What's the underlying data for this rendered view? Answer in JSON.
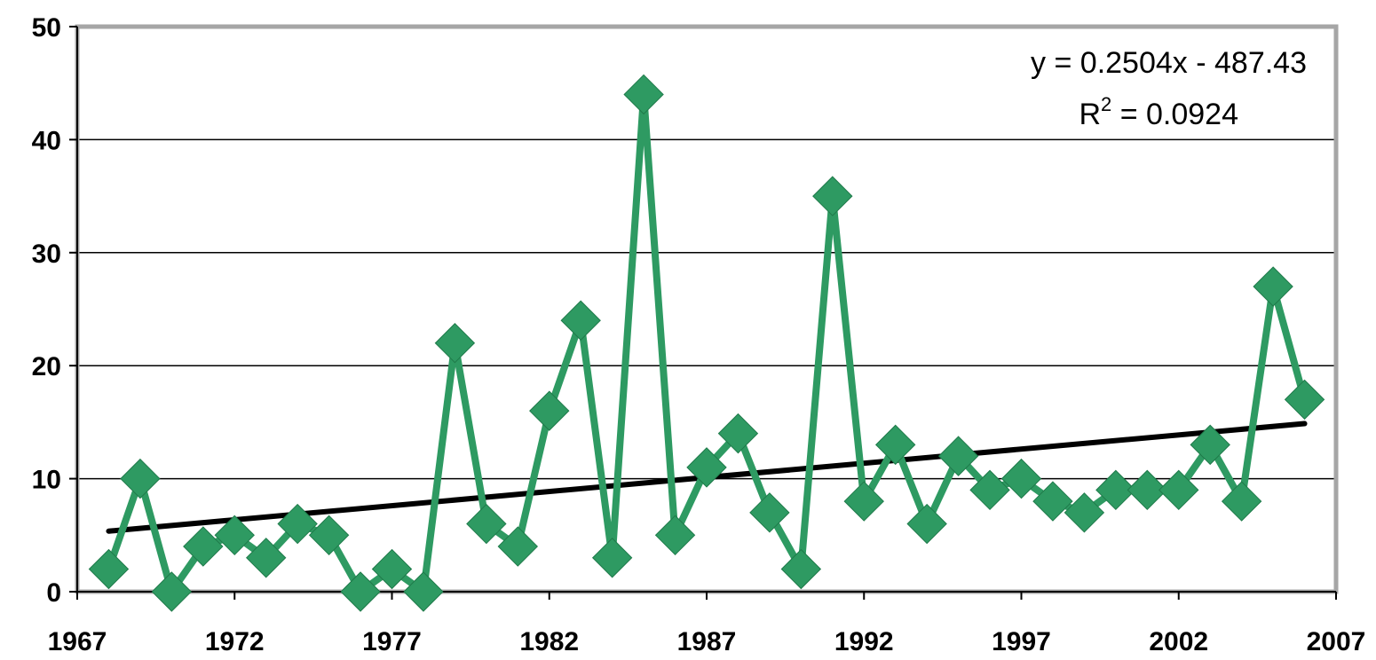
{
  "chart_data": {
    "type": "line",
    "title": "",
    "xlabel": "",
    "ylabel": "",
    "xlim": [
      1967,
      2007
    ],
    "ylim": [
      0,
      50
    ],
    "x_ticks": [
      "1967",
      "1972",
      "1977",
      "1982",
      "1987",
      "1992",
      "1997",
      "2002",
      "2007"
    ],
    "y_ticks": [
      "0",
      "10",
      "20",
      "30",
      "40",
      "50"
    ],
    "grid": "horizontal",
    "series": [
      {
        "color": "#2e9a62",
        "marker": "diamond",
        "points": [
          {
            "x": 1968,
            "y": 2
          },
          {
            "x": 1969,
            "y": 10
          },
          {
            "x": 1970,
            "y": 0
          },
          {
            "x": 1971,
            "y": 4
          },
          {
            "x": 1972,
            "y": 5
          },
          {
            "x": 1973,
            "y": 3
          },
          {
            "x": 1974,
            "y": 6
          },
          {
            "x": 1975,
            "y": 5
          },
          {
            "x": 1976,
            "y": 0
          },
          {
            "x": 1977,
            "y": 2
          },
          {
            "x": 1978,
            "y": 0
          },
          {
            "x": 1979,
            "y": 22
          },
          {
            "x": 1980,
            "y": 6
          },
          {
            "x": 1981,
            "y": 4
          },
          {
            "x": 1982,
            "y": 16
          },
          {
            "x": 1983,
            "y": 24
          },
          {
            "x": 1984,
            "y": 3
          },
          {
            "x": 1985,
            "y": 44
          },
          {
            "x": 1986,
            "y": 5
          },
          {
            "x": 1987,
            "y": 11
          },
          {
            "x": 1988,
            "y": 14
          },
          {
            "x": 1989,
            "y": 7
          },
          {
            "x": 1990,
            "y": 2
          },
          {
            "x": 1991,
            "y": 35
          },
          {
            "x": 1992,
            "y": 8
          },
          {
            "x": 1993,
            "y": 13
          },
          {
            "x": 1994,
            "y": 6
          },
          {
            "x": 1995,
            "y": 12
          },
          {
            "x": 1996,
            "y": 9
          },
          {
            "x": 1997,
            "y": 10
          },
          {
            "x": 1998,
            "y": 8
          },
          {
            "x": 1999,
            "y": 7
          },
          {
            "x": 2000,
            "y": 9
          },
          {
            "x": 2001,
            "y": 9
          },
          {
            "x": 2002,
            "y": 9
          },
          {
            "x": 2003,
            "y": 13
          },
          {
            "x": 2004,
            "y": 8
          },
          {
            "x": 2005,
            "y": 27
          },
          {
            "x": 2006,
            "y": 17
          }
        ]
      }
    ],
    "trendline": {
      "type": "linear",
      "slope": 0.2504,
      "intercept": -487.43,
      "color": "#000000",
      "equation_label": "y = 0.2504x - 487.43",
      "r2_prefix": "R",
      "r2_exponent": "2",
      "r2_suffix": " = 0.0924"
    },
    "colors": {
      "plot_border": "#a6a6a6",
      "gridline": "#000000",
      "axis": "#000000"
    }
  }
}
